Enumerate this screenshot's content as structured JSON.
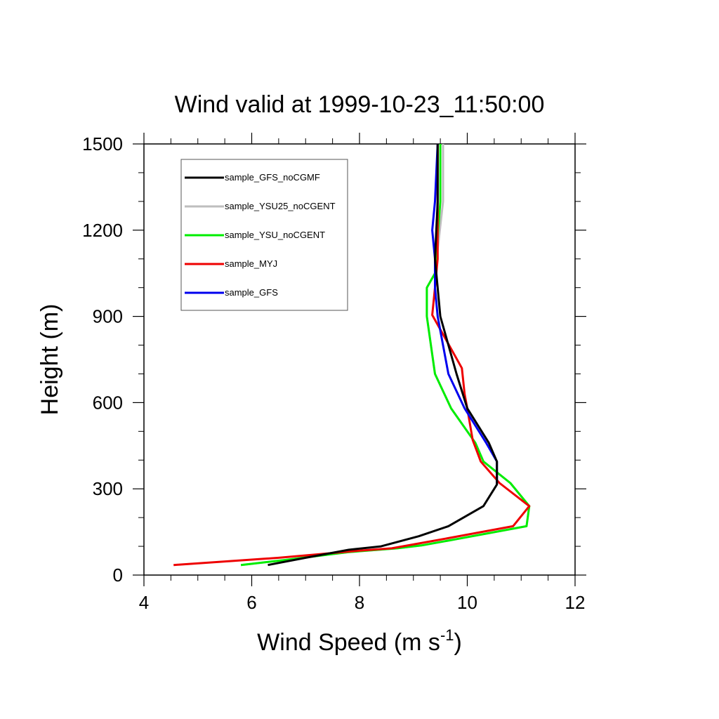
{
  "chart_data": {
    "type": "line",
    "title": "Wind valid at 1999-10-23_11:50:00",
    "xlabel": "Wind Speed (m s",
    "xlabel_sup": "-1",
    "xlabel_end": ")",
    "ylabel": "Height (m)",
    "xlim": [
      4,
      12
    ],
    "ylim": [
      0,
      1500
    ],
    "xticks": [
      4,
      6,
      8,
      10,
      12
    ],
    "yticks": [
      0,
      300,
      600,
      900,
      1200,
      1500
    ],
    "legend_position": "top-left",
    "grid": false,
    "series": [
      {
        "name": "sample_GFS_noCGMF",
        "color": "#000000",
        "points": [
          [
            6.3,
            35
          ],
          [
            7.0,
            60
          ],
          [
            7.8,
            88
          ],
          [
            8.4,
            100
          ],
          [
            9.1,
            135
          ],
          [
            9.65,
            170
          ],
          [
            10.3,
            240
          ],
          [
            10.55,
            315
          ],
          [
            10.55,
            395
          ],
          [
            10.4,
            460
          ],
          [
            10.0,
            580
          ],
          [
            9.8,
            700
          ],
          [
            9.5,
            900
          ],
          [
            9.45,
            1000
          ],
          [
            9.4,
            1100
          ],
          [
            9.45,
            1300
          ],
          [
            9.45,
            1500
          ]
        ]
      },
      {
        "name": "sample_YSU25_noCGENT",
        "color": "#bebebe",
        "points": [
          [
            5.8,
            35
          ],
          [
            6.6,
            52
          ],
          [
            7.8,
            80
          ],
          [
            8.7,
            93
          ],
          [
            9.15,
            103
          ],
          [
            9.8,
            125
          ],
          [
            11.1,
            170
          ],
          [
            11.15,
            240
          ],
          [
            10.8,
            320
          ],
          [
            10.3,
            395
          ],
          [
            10.15,
            460
          ],
          [
            9.7,
            580
          ],
          [
            9.4,
            700
          ],
          [
            9.25,
            900
          ],
          [
            9.25,
            1000
          ],
          [
            9.4,
            1050
          ],
          [
            9.55,
            1300
          ],
          [
            9.55,
            1500
          ]
        ]
      },
      {
        "name": "sample_YSU_noCGENT",
        "color": "#00ee00",
        "points": [
          [
            5.8,
            35
          ],
          [
            6.6,
            52
          ],
          [
            7.8,
            80
          ],
          [
            8.7,
            93
          ],
          [
            9.15,
            103
          ],
          [
            9.8,
            125
          ],
          [
            11.1,
            170
          ],
          [
            11.15,
            240
          ],
          [
            10.8,
            320
          ],
          [
            10.3,
            395
          ],
          [
            10.15,
            460
          ],
          [
            9.7,
            580
          ],
          [
            9.4,
            700
          ],
          [
            9.25,
            900
          ],
          [
            9.25,
            1000
          ],
          [
            9.4,
            1050
          ],
          [
            9.5,
            1300
          ],
          [
            9.5,
            1500
          ]
        ]
      },
      {
        "name": "sample_MYJ",
        "color": "#ee0000",
        "points": [
          [
            4.55,
            35
          ],
          [
            6.5,
            60
          ],
          [
            8.0,
            85
          ],
          [
            8.6,
            93
          ],
          [
            9.4,
            120
          ],
          [
            10.7,
            165
          ],
          [
            10.85,
            170
          ],
          [
            11.15,
            240
          ],
          [
            10.6,
            320
          ],
          [
            10.25,
            395
          ],
          [
            10.1,
            470
          ],
          [
            10.0,
            580
          ],
          [
            9.95,
            630
          ],
          [
            9.9,
            720
          ],
          [
            9.35,
            905
          ],
          [
            9.4,
            1000
          ],
          [
            9.45,
            1100
          ],
          [
            9.45,
            1300
          ],
          [
            9.45,
            1500
          ]
        ]
      },
      {
        "name": "sample_GFS",
        "color": "#0000ee",
        "points": [
          [
            10.55,
            315
          ],
          [
            10.55,
            395
          ],
          [
            10.35,
            460
          ],
          [
            9.95,
            580
          ],
          [
            9.65,
            700
          ],
          [
            9.45,
            900
          ],
          [
            9.4,
            1000
          ],
          [
            9.4,
            1100
          ],
          [
            9.35,
            1200
          ],
          [
            9.4,
            1300
          ],
          [
            9.45,
            1500
          ]
        ]
      }
    ]
  }
}
